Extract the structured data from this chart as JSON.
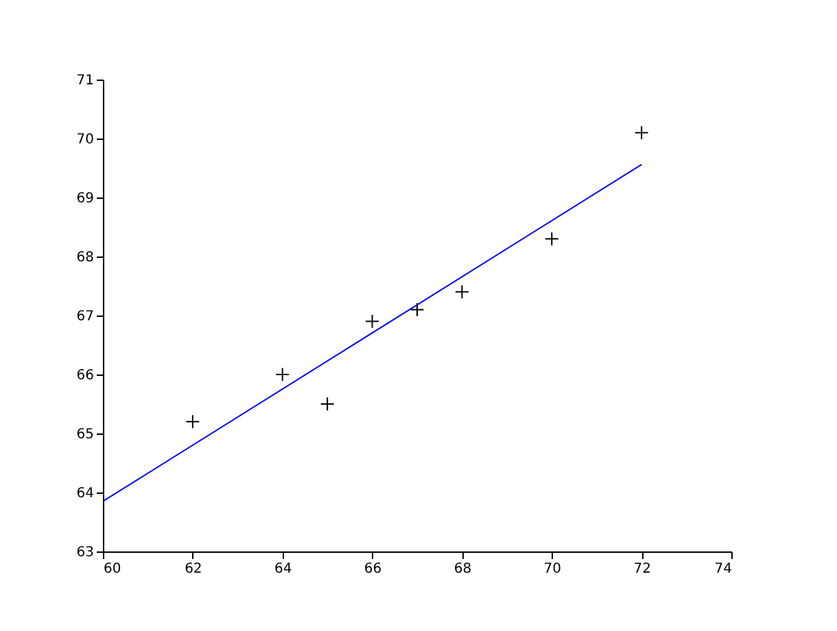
{
  "chart_data": {
    "type": "scatter",
    "xlim": [
      60,
      74
    ],
    "xticks": [
      60,
      62,
      64,
      66,
      68,
      70,
      72,
      74
    ],
    "ylim": [
      63,
      71
    ],
    "yticks": [
      63,
      64,
      65,
      66,
      67,
      68,
      69,
      70,
      71
    ],
    "grid": false,
    "series": [
      {
        "type": "scatter",
        "color": "#000000",
        "marker": "cross",
        "x": [
          62,
          64,
          65,
          66,
          67,
          68,
          70,
          72
        ],
        "values": [
          65.2,
          66.0,
          65.5,
          66.9,
          67.1,
          67.4,
          68.3,
          70.1
        ]
      },
      {
        "type": "line",
        "color": "#0000ff",
        "line_style": "solid",
        "x": [
          60,
          72
        ],
        "values": [
          63.85,
          69.56
        ]
      }
    ]
  }
}
